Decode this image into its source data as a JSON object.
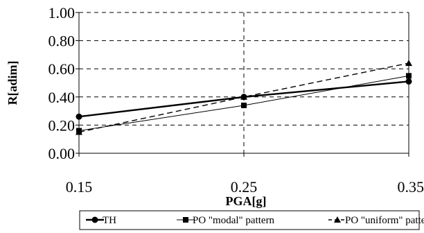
{
  "chart_data": {
    "type": "line",
    "title": "",
    "xlabel": "PGA[g]",
    "ylabel": "R[adim]",
    "x": [
      0.15,
      0.25,
      0.35
    ],
    "x_tick_labels": [
      "0.15",
      "0.25",
      "0.35"
    ],
    "y_tick_labels": [
      "0.00",
      "0.20",
      "0.40",
      "0.60",
      "0.80",
      "1.00"
    ],
    "xlim": [
      0.15,
      0.35
    ],
    "ylim": [
      0,
      1
    ],
    "grid": "horizontal dashed; vertical dashed at 0.25",
    "legend_position": "bottom",
    "series": [
      {
        "name": "TH",
        "marker": "circle",
        "line_style": "solid-thick",
        "values": [
          0.26,
          0.4,
          0.51
        ]
      },
      {
        "name": "PO \"modal\" pattern",
        "marker": "square",
        "line_style": "solid-thin",
        "values": [
          0.16,
          0.34,
          0.55
        ]
      },
      {
        "name": "PO \"uniform\" pattern",
        "marker": "triangle",
        "line_style": "dashed",
        "values": [
          0.15,
          0.4,
          0.64
        ]
      }
    ],
    "colors": {
      "line": "#000000",
      "grid": "#000000",
      "background": "#ffffff"
    }
  }
}
